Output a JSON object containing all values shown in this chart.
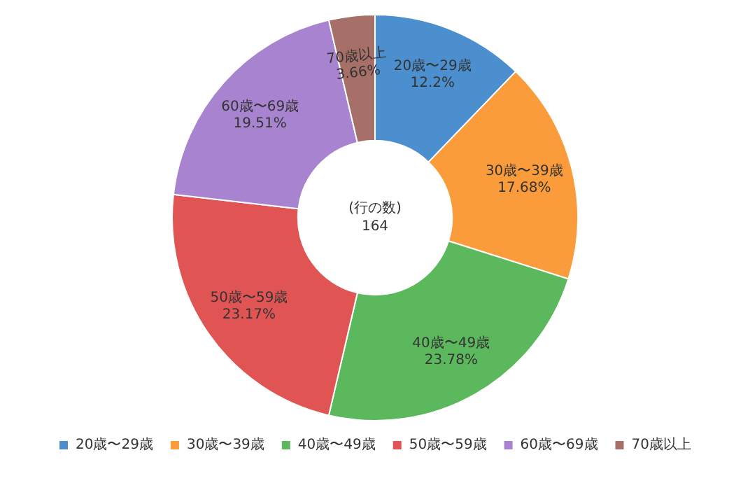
{
  "chart_data": {
    "type": "donut",
    "categories": [
      "20歳〜29歳",
      "30歳〜39歳",
      "40歳〜49歳",
      "50歳〜59歳",
      "60歳〜69歳",
      "70歳以上"
    ],
    "values": [
      12.2,
      17.68,
      23.78,
      23.17,
      19.51,
      3.66
    ],
    "value_labels": [
      "12.2%",
      "17.68%",
      "23.78%",
      "23.17%",
      "19.51%",
      "3.66%"
    ],
    "colors": [
      "#4b8fce",
      "#fb9c3c",
      "#5cb85c",
      "#e05454",
      "#a883cf",
      "#a66f68"
    ],
    "annotations": [
      "(行の数)",
      "164"
    ],
    "legend": "bottom"
  }
}
